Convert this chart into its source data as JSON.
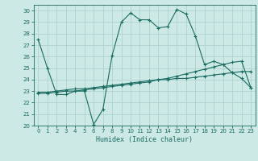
{
  "xlabel": "Humidex (Indice chaleur)",
  "background_color": "#cce9e6",
  "grid_color": "#aed4d0",
  "line_color": "#1a6b60",
  "xlim": [
    -0.5,
    23.5
  ],
  "ylim": [
    20,
    30.5
  ],
  "yticks": [
    20,
    21,
    22,
    23,
    24,
    25,
    26,
    27,
    28,
    29,
    30
  ],
  "xticks": [
    0,
    1,
    2,
    3,
    4,
    5,
    6,
    7,
    8,
    9,
    10,
    11,
    12,
    13,
    14,
    15,
    16,
    17,
    18,
    19,
    20,
    21,
    22,
    23
  ],
  "series1_x": [
    0,
    1,
    2,
    3,
    4,
    5,
    6,
    7,
    8,
    9,
    10,
    11,
    12,
    13,
    14,
    15,
    16,
    17,
    18,
    19,
    20,
    21,
    22,
    23
  ],
  "series1_y": [
    27.5,
    25.0,
    22.7,
    22.7,
    23.0,
    23.0,
    20.1,
    21.4,
    26.1,
    29.0,
    29.8,
    29.2,
    29.2,
    28.5,
    28.6,
    30.1,
    29.7,
    27.8,
    25.3,
    25.6,
    25.3,
    24.6,
    24.1,
    23.3
  ],
  "series2_x": [
    0,
    1,
    2,
    3,
    4,
    5,
    6,
    7,
    8,
    9,
    10,
    11,
    12,
    13,
    14,
    15,
    16,
    17,
    18,
    19,
    20,
    21,
    22,
    23
  ],
  "series2_y": [
    22.8,
    22.8,
    22.9,
    23.0,
    23.0,
    23.1,
    23.2,
    23.3,
    23.4,
    23.5,
    23.6,
    23.7,
    23.8,
    24.0,
    24.1,
    24.3,
    24.5,
    24.7,
    24.9,
    25.1,
    25.3,
    25.5,
    25.6,
    23.3
  ],
  "series3_x": [
    0,
    1,
    2,
    3,
    4,
    5,
    6,
    7,
    8,
    9,
    10,
    11,
    12,
    13,
    14,
    15,
    16,
    17,
    18,
    19,
    20,
    21,
    22,
    23
  ],
  "series3_y": [
    22.9,
    22.9,
    23.0,
    23.1,
    23.2,
    23.2,
    23.3,
    23.4,
    23.5,
    23.6,
    23.7,
    23.8,
    23.9,
    24.0,
    24.0,
    24.1,
    24.1,
    24.2,
    24.3,
    24.4,
    24.5,
    24.6,
    24.7,
    24.7
  ]
}
